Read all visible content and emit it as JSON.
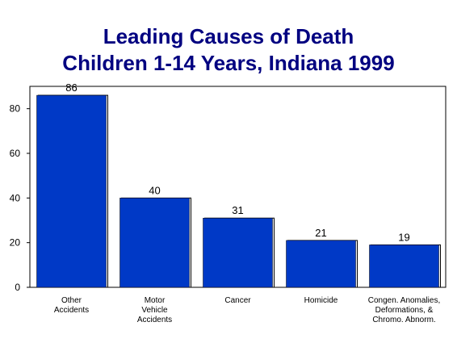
{
  "chart_data": {
    "type": "bar",
    "title": [
      "Leading Causes of Death",
      "Children 1-14 Years, Indiana 1999"
    ],
    "categories": [
      [
        "Other",
        "Accidents"
      ],
      [
        "Motor",
        "Vehicle",
        "Accidents"
      ],
      [
        "Cancer"
      ],
      [
        "Homicide"
      ],
      [
        "Congen. Anomalies,",
        "Deformations, &",
        "Chromo. Abnorm."
      ]
    ],
    "values": [
      86,
      40,
      31,
      21,
      19
    ],
    "data_labels": [
      "86",
      "40",
      "31",
      "21",
      "19"
    ],
    "yticks": [
      0,
      20,
      40,
      60,
      80
    ],
    "ylim": [
      0,
      90
    ],
    "xlabel": "",
    "ylabel": "",
    "grid": false,
    "bar_color": "#0039c6"
  }
}
